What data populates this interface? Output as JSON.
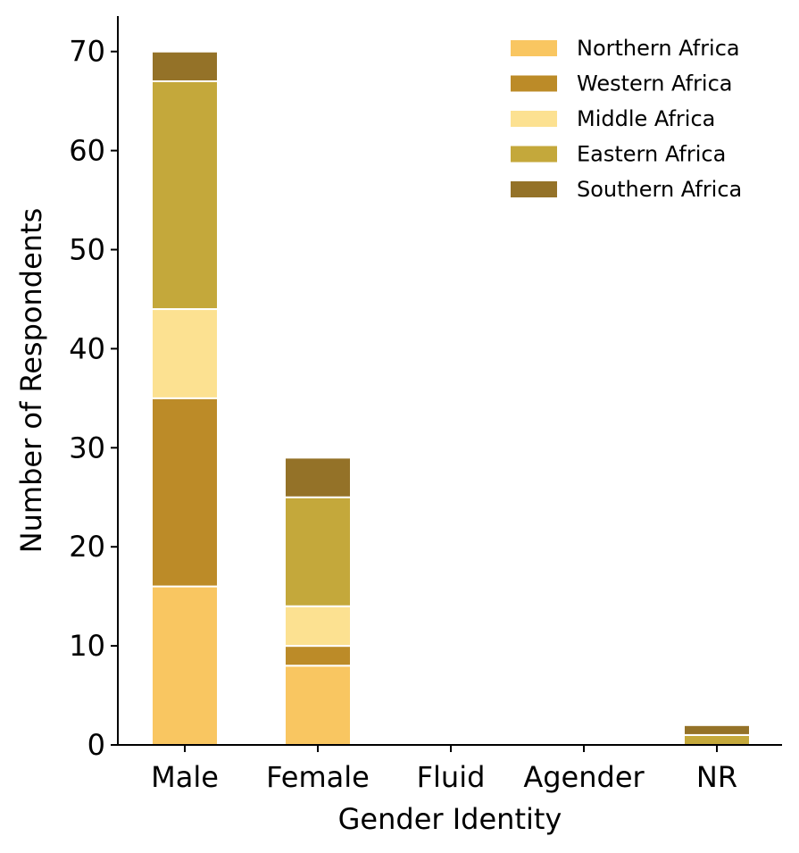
{
  "chart_data": {
    "type": "bar",
    "stacked": true,
    "categories": [
      "Male",
      "Female",
      "Fluid",
      "Agender",
      "NR"
    ],
    "series": [
      {
        "name": "Northern Africa",
        "color": "#F9C661",
        "values": [
          16,
          8,
          0,
          0,
          0
        ]
      },
      {
        "name": "Western Africa",
        "color": "#BC8B28",
        "values": [
          19,
          2,
          0,
          0,
          0
        ]
      },
      {
        "name": "Middle Africa",
        "color": "#FCE191",
        "values": [
          9,
          4,
          0,
          0,
          0
        ]
      },
      {
        "name": "Eastern Africa",
        "color": "#C4A83B",
        "values": [
          23,
          11,
          0,
          0,
          1
        ]
      },
      {
        "name": "Southern Africa",
        "color": "#947228",
        "values": [
          3,
          4,
          0,
          0,
          1
        ]
      }
    ],
    "xlabel": "Gender Identity",
    "ylabel": "Number of Respondents",
    "ylim": [
      0,
      73.5
    ],
    "yticks": [
      0,
      10,
      20,
      30,
      40,
      50,
      60,
      70
    ],
    "grid": false,
    "legend_position": "top-right"
  }
}
